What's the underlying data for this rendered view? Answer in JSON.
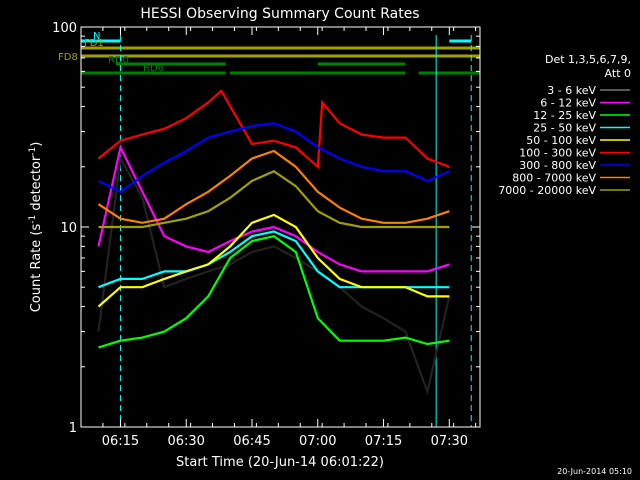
{
  "chart_data": {
    "type": "line",
    "title": "HESSI Observing Summary Count Rates",
    "xlabel": "Start Time (20-Jun-14 06:01:22)",
    "ylabel": "Count Rate (s",
    "ylabel_sup": "-1",
    "ylabel_tail": " detector",
    "ylabel_sup2": "-1",
    "ylabel_close": ")",
    "y_scale": "log",
    "ylim": [
      1,
      100
    ],
    "xlim": [
      "06:06",
      "07:37"
    ],
    "x_ticks": [
      "06:15",
      "06:30",
      "06:45",
      "07:00",
      "07:15",
      "07:30"
    ],
    "y_ticks": [
      "1",
      "10",
      "100"
    ],
    "legend_header": [
      "Det 1,3,5,6,7,9,",
      "Att 0"
    ],
    "legend_placement": "right",
    "timestamp": "20-Jun-2014 05:10",
    "flags": [
      {
        "label": "N",
        "color": "#00ffff",
        "segments": [
          [
            "06:06",
            "06:15"
          ],
          [
            "07:30",
            "07:35"
          ]
        ]
      },
      {
        "label": "FD1",
        "color": "#a0a000",
        "segments": [
          [
            "06:06",
            "07:37"
          ]
        ]
      },
      {
        "label": "FD8",
        "color": "#a0a000",
        "segments": [
          [
            "06:06",
            "07:37"
          ]
        ]
      },
      {
        "label": "RD0",
        "color": "#008000",
        "segments": [
          [
            "06:14",
            "06:39"
          ],
          [
            "07:00",
            "07:20"
          ]
        ]
      },
      {
        "label": "RD6",
        "color": "#008000",
        "segments": [
          [
            "06:06",
            "06:39"
          ],
          [
            "06:40",
            "07:00"
          ],
          [
            "07:00",
            "07:20"
          ],
          [
            "07:23",
            "07:37"
          ]
        ]
      }
    ],
    "vlines": [
      {
        "time": "06:15",
        "color": "#00ffff",
        "style": "dashed"
      },
      {
        "time": "07:27",
        "color": "#00ffff",
        "style": "solid"
      },
      {
        "time": "07:35",
        "color": "#00ffff",
        "style": "dashed"
      }
    ],
    "series": [
      {
        "name": "3 - 6 keV",
        "color": "#000000",
        "x": [
          "06:10",
          "06:15",
          "06:20",
          "06:25",
          "06:30",
          "06:35",
          "06:40",
          "06:45",
          "06:50",
          "06:55",
          "07:00",
          "07:05",
          "07:10",
          "07:15",
          "07:20",
          "07:25",
          "07:30"
        ],
        "y": [
          3.0,
          22,
          14,
          5.0,
          5.5,
          6.0,
          6.5,
          7.5,
          8.0,
          7.0,
          6.0,
          5.0,
          4.0,
          3.5,
          3.0,
          1.5,
          4.5
        ]
      },
      {
        "name": "6 - 12 keV",
        "color": "#ff00ff",
        "x": [
          "06:10",
          "06:15",
          "06:20",
          "06:25",
          "06:30",
          "06:35",
          "06:40",
          "06:45",
          "06:50",
          "06:55",
          "07:00",
          "07:05",
          "07:10",
          "07:15",
          "07:20",
          "07:25",
          "07:30"
        ],
        "y": [
          8.0,
          25,
          15,
          9.0,
          8.0,
          7.5,
          8.5,
          9.5,
          10.0,
          9.0,
          7.5,
          6.5,
          6.0,
          6.0,
          6.0,
          6.0,
          6.5
        ]
      },
      {
        "name": "12 - 25 keV",
        "color": "#00ff00",
        "x": [
          "06:10",
          "06:15",
          "06:20",
          "06:25",
          "06:30",
          "06:35",
          "06:40",
          "06:45",
          "06:50",
          "06:55",
          "07:00",
          "07:05",
          "07:10",
          "07:15",
          "07:20",
          "07:25",
          "07:30"
        ],
        "y": [
          2.5,
          2.7,
          2.8,
          3.0,
          3.5,
          4.5,
          7.0,
          8.5,
          9.0,
          7.5,
          3.5,
          2.7,
          2.7,
          2.7,
          2.8,
          2.6,
          2.7
        ]
      },
      {
        "name": "25 - 50 keV",
        "color": "#00ffff",
        "x": [
          "06:10",
          "06:15",
          "06:20",
          "06:25",
          "06:30",
          "06:35",
          "06:40",
          "06:45",
          "06:50",
          "06:55",
          "07:00",
          "07:05",
          "07:10",
          "07:15",
          "07:20",
          "07:25",
          "07:30"
        ],
        "y": [
          5.0,
          5.5,
          5.5,
          6.0,
          6.0,
          6.5,
          7.5,
          9.0,
          9.5,
          8.5,
          6.0,
          5.0,
          5.0,
          5.0,
          5.0,
          5.0,
          5.0
        ]
      },
      {
        "name": "50 - 100 keV",
        "color": "#ffff00",
        "x": [
          "06:10",
          "06:15",
          "06:20",
          "06:25",
          "06:30",
          "06:35",
          "06:40",
          "06:45",
          "06:50",
          "06:55",
          "07:00",
          "07:05",
          "07:10",
          "07:15",
          "07:20",
          "07:25",
          "07:30"
        ],
        "y": [
          4.0,
          5.0,
          5.0,
          5.5,
          6.0,
          6.5,
          8.0,
          10.5,
          11.5,
          10.0,
          7.0,
          5.5,
          5.0,
          5.0,
          5.0,
          4.5,
          4.5
        ]
      },
      {
        "name": "100 - 300 keV",
        "color": "#ff0000",
        "x": [
          "06:10",
          "06:15",
          "06:20",
          "06:25",
          "06:30",
          "06:35",
          "06:38",
          "06:45",
          "06:50",
          "06:55",
          "07:00",
          "07:01",
          "07:05",
          "07:10",
          "07:15",
          "07:20",
          "07:25",
          "07:30"
        ],
        "y": [
          22,
          27,
          29,
          31,
          35,
          42,
          48,
          26,
          27,
          25,
          20,
          42,
          33,
          29,
          28,
          28,
          22,
          20
        ]
      },
      {
        "name": "300 - 800 keV",
        "color": "#0000ff",
        "x": [
          "06:10",
          "06:15",
          "06:20",
          "06:25",
          "06:30",
          "06:35",
          "06:40",
          "06:45",
          "06:50",
          "06:55",
          "07:00",
          "07:05",
          "07:10",
          "07:15",
          "07:20",
          "07:25",
          "07:30"
        ],
        "y": [
          17,
          15,
          18,
          21,
          24,
          28,
          30,
          32,
          33,
          30,
          25,
          22,
          20,
          19,
          19,
          17,
          19
        ]
      },
      {
        "name": "800 - 7000 keV",
        "color": "#ff8000",
        "x": [
          "06:10",
          "06:15",
          "06:20",
          "06:25",
          "06:30",
          "06:35",
          "06:40",
          "06:45",
          "06:50",
          "06:55",
          "07:00",
          "07:05",
          "07:10",
          "07:15",
          "07:20",
          "07:25",
          "07:30"
        ],
        "y": [
          13,
          11,
          10.5,
          11,
          13,
          15,
          18,
          22,
          24,
          20,
          15,
          12.5,
          11,
          10.5,
          10.5,
          11,
          12
        ]
      },
      {
        "name": "7000 - 20000 keV",
        "color": "#a0a000",
        "x": [
          "06:10",
          "06:15",
          "06:20",
          "06:25",
          "06:30",
          "06:35",
          "06:40",
          "06:45",
          "06:50",
          "06:55",
          "07:00",
          "07:05",
          "07:10",
          "07:15",
          "07:20",
          "07:25",
          "07:30"
        ],
        "y": [
          10,
          10,
          10,
          10.5,
          11,
          12,
          14,
          17,
          19,
          16,
          12,
          10.5,
          10,
          10,
          10,
          10,
          10
        ]
      }
    ]
  }
}
